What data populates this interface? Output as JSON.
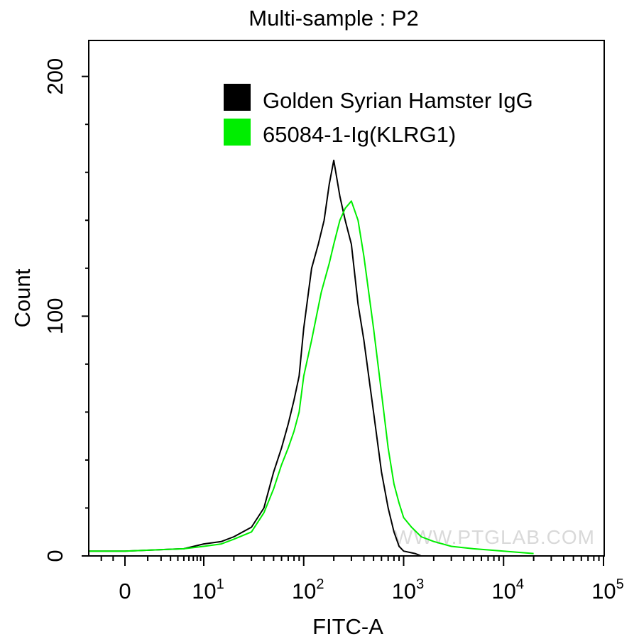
{
  "chart_data": {
    "type": "line",
    "title": "Multi-sample : P2",
    "xlabel": "FITC-A",
    "ylabel": "Count",
    "xscale": "biexponential",
    "xlim": [
      -30,
      100000
    ],
    "ylim": [
      0,
      215
    ],
    "grid": false,
    "legend_position": "top-right",
    "x_ticks": [
      {
        "base": "0",
        "exp": ""
      },
      {
        "base": "10",
        "exp": "1"
      },
      {
        "base": "10",
        "exp": "2"
      },
      {
        "base": "10",
        "exp": "3"
      },
      {
        "base": "10",
        "exp": "4"
      },
      {
        "base": "10",
        "exp": "5"
      }
    ],
    "y_ticks": [
      "0",
      "100",
      "200"
    ],
    "series": [
      {
        "name": "Golden Syrian Hamster IgG",
        "color": "#000000",
        "x": [
          -30,
          0,
          5,
          10,
          15,
          20,
          30,
          40,
          50,
          60,
          70,
          80,
          90,
          100,
          120,
          140,
          160,
          180,
          200,
          230,
          260,
          300,
          350,
          400,
          500,
          600,
          700,
          800,
          900,
          1000,
          1300,
          1500,
          2000
        ],
        "y": [
          2,
          2,
          3,
          5,
          6,
          8,
          12,
          20,
          35,
          45,
          55,
          65,
          75,
          95,
          120,
          130,
          140,
          155,
          165,
          150,
          140,
          130,
          105,
          90,
          60,
          35,
          20,
          10,
          4,
          2,
          1,
          0,
          0
        ]
      },
      {
        "name": "65084-1-Ig(KLRG1)",
        "color": "#00ee00",
        "x": [
          -30,
          0,
          5,
          10,
          15,
          20,
          30,
          40,
          50,
          60,
          70,
          80,
          90,
          100,
          120,
          150,
          180,
          200,
          230,
          260,
          300,
          350,
          400,
          500,
          600,
          700,
          800,
          900,
          1000,
          1200,
          1500,
          2000,
          3000,
          5000,
          10000,
          20000
        ],
        "y": [
          2,
          2,
          3,
          4,
          5,
          7,
          10,
          18,
          28,
          38,
          45,
          52,
          60,
          75,
          90,
          110,
          122,
          130,
          140,
          145,
          148,
          140,
          125,
          95,
          68,
          45,
          30,
          22,
          16,
          12,
          8,
          6,
          4,
          3,
          2,
          1
        ]
      }
    ]
  },
  "watermark": "WWW.PTGLAB.COM"
}
